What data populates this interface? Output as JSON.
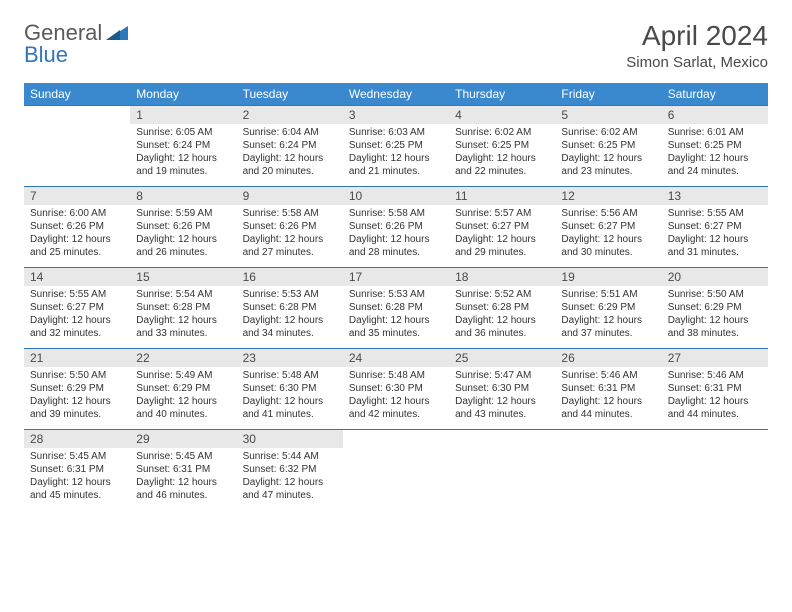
{
  "brand": {
    "general": "General",
    "blue": "Blue"
  },
  "title": "April 2024",
  "location": "Simon Sarlat, Mexico",
  "colors": {
    "header_bg": "#3a89cf",
    "header_text": "#ffffff",
    "daynum_bg": "#e8e8e8",
    "border": "#2f77bb",
    "text": "#333333",
    "title_text": "#4a4a4a"
  },
  "day_headers": [
    "Sunday",
    "Monday",
    "Tuesday",
    "Wednesday",
    "Thursday",
    "Friday",
    "Saturday"
  ],
  "weeks": [
    {
      "nums": [
        "",
        "1",
        "2",
        "3",
        "4",
        "5",
        "6"
      ],
      "cells": [
        {
          "blank": true
        },
        {
          "sunrise": "Sunrise: 6:05 AM",
          "sunset": "Sunset: 6:24 PM",
          "day1": "Daylight: 12 hours",
          "day2": "and 19 minutes."
        },
        {
          "sunrise": "Sunrise: 6:04 AM",
          "sunset": "Sunset: 6:24 PM",
          "day1": "Daylight: 12 hours",
          "day2": "and 20 minutes."
        },
        {
          "sunrise": "Sunrise: 6:03 AM",
          "sunset": "Sunset: 6:25 PM",
          "day1": "Daylight: 12 hours",
          "day2": "and 21 minutes."
        },
        {
          "sunrise": "Sunrise: 6:02 AM",
          "sunset": "Sunset: 6:25 PM",
          "day1": "Daylight: 12 hours",
          "day2": "and 22 minutes."
        },
        {
          "sunrise": "Sunrise: 6:02 AM",
          "sunset": "Sunset: 6:25 PM",
          "day1": "Daylight: 12 hours",
          "day2": "and 23 minutes."
        },
        {
          "sunrise": "Sunrise: 6:01 AM",
          "sunset": "Sunset: 6:25 PM",
          "day1": "Daylight: 12 hours",
          "day2": "and 24 minutes."
        }
      ]
    },
    {
      "nums": [
        "7",
        "8",
        "9",
        "10",
        "11",
        "12",
        "13"
      ],
      "cells": [
        {
          "sunrise": "Sunrise: 6:00 AM",
          "sunset": "Sunset: 6:26 PM",
          "day1": "Daylight: 12 hours",
          "day2": "and 25 minutes."
        },
        {
          "sunrise": "Sunrise: 5:59 AM",
          "sunset": "Sunset: 6:26 PM",
          "day1": "Daylight: 12 hours",
          "day2": "and 26 minutes."
        },
        {
          "sunrise": "Sunrise: 5:58 AM",
          "sunset": "Sunset: 6:26 PM",
          "day1": "Daylight: 12 hours",
          "day2": "and 27 minutes."
        },
        {
          "sunrise": "Sunrise: 5:58 AM",
          "sunset": "Sunset: 6:26 PM",
          "day1": "Daylight: 12 hours",
          "day2": "and 28 minutes."
        },
        {
          "sunrise": "Sunrise: 5:57 AM",
          "sunset": "Sunset: 6:27 PM",
          "day1": "Daylight: 12 hours",
          "day2": "and 29 minutes."
        },
        {
          "sunrise": "Sunrise: 5:56 AM",
          "sunset": "Sunset: 6:27 PM",
          "day1": "Daylight: 12 hours",
          "day2": "and 30 minutes."
        },
        {
          "sunrise": "Sunrise: 5:55 AM",
          "sunset": "Sunset: 6:27 PM",
          "day1": "Daylight: 12 hours",
          "day2": "and 31 minutes."
        }
      ]
    },
    {
      "nums": [
        "14",
        "15",
        "16",
        "17",
        "18",
        "19",
        "20"
      ],
      "cells": [
        {
          "sunrise": "Sunrise: 5:55 AM",
          "sunset": "Sunset: 6:27 PM",
          "day1": "Daylight: 12 hours",
          "day2": "and 32 minutes."
        },
        {
          "sunrise": "Sunrise: 5:54 AM",
          "sunset": "Sunset: 6:28 PM",
          "day1": "Daylight: 12 hours",
          "day2": "and 33 minutes."
        },
        {
          "sunrise": "Sunrise: 5:53 AM",
          "sunset": "Sunset: 6:28 PM",
          "day1": "Daylight: 12 hours",
          "day2": "and 34 minutes."
        },
        {
          "sunrise": "Sunrise: 5:53 AM",
          "sunset": "Sunset: 6:28 PM",
          "day1": "Daylight: 12 hours",
          "day2": "and 35 minutes."
        },
        {
          "sunrise": "Sunrise: 5:52 AM",
          "sunset": "Sunset: 6:28 PM",
          "day1": "Daylight: 12 hours",
          "day2": "and 36 minutes."
        },
        {
          "sunrise": "Sunrise: 5:51 AM",
          "sunset": "Sunset: 6:29 PM",
          "day1": "Daylight: 12 hours",
          "day2": "and 37 minutes."
        },
        {
          "sunrise": "Sunrise: 5:50 AM",
          "sunset": "Sunset: 6:29 PM",
          "day1": "Daylight: 12 hours",
          "day2": "and 38 minutes."
        }
      ]
    },
    {
      "nums": [
        "21",
        "22",
        "23",
        "24",
        "25",
        "26",
        "27"
      ],
      "cells": [
        {
          "sunrise": "Sunrise: 5:50 AM",
          "sunset": "Sunset: 6:29 PM",
          "day1": "Daylight: 12 hours",
          "day2": "and 39 minutes."
        },
        {
          "sunrise": "Sunrise: 5:49 AM",
          "sunset": "Sunset: 6:29 PM",
          "day1": "Daylight: 12 hours",
          "day2": "and 40 minutes."
        },
        {
          "sunrise": "Sunrise: 5:48 AM",
          "sunset": "Sunset: 6:30 PM",
          "day1": "Daylight: 12 hours",
          "day2": "and 41 minutes."
        },
        {
          "sunrise": "Sunrise: 5:48 AM",
          "sunset": "Sunset: 6:30 PM",
          "day1": "Daylight: 12 hours",
          "day2": "and 42 minutes."
        },
        {
          "sunrise": "Sunrise: 5:47 AM",
          "sunset": "Sunset: 6:30 PM",
          "day1": "Daylight: 12 hours",
          "day2": "and 43 minutes."
        },
        {
          "sunrise": "Sunrise: 5:46 AM",
          "sunset": "Sunset: 6:31 PM",
          "day1": "Daylight: 12 hours",
          "day2": "and 44 minutes."
        },
        {
          "sunrise": "Sunrise: 5:46 AM",
          "sunset": "Sunset: 6:31 PM",
          "day1": "Daylight: 12 hours",
          "day2": "and 44 minutes."
        }
      ]
    },
    {
      "nums": [
        "28",
        "29",
        "30",
        "",
        "",
        "",
        ""
      ],
      "cells": [
        {
          "sunrise": "Sunrise: 5:45 AM",
          "sunset": "Sunset: 6:31 PM",
          "day1": "Daylight: 12 hours",
          "day2": "and 45 minutes."
        },
        {
          "sunrise": "Sunrise: 5:45 AM",
          "sunset": "Sunset: 6:31 PM",
          "day1": "Daylight: 12 hours",
          "day2": "and 46 minutes."
        },
        {
          "sunrise": "Sunrise: 5:44 AM",
          "sunset": "Sunset: 6:32 PM",
          "day1": "Daylight: 12 hours",
          "day2": "and 47 minutes."
        },
        {
          "blank": true
        },
        {
          "blank": true
        },
        {
          "blank": true
        },
        {
          "blank": true
        }
      ]
    }
  ]
}
